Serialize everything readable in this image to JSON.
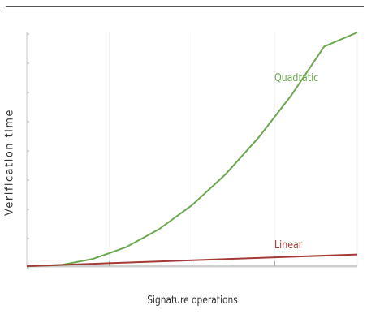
{
  "chart_data": {
    "type": "line",
    "title": "",
    "xlabel": "Signature operations",
    "ylabel": "Verification time",
    "xlim": [
      0,
      10
    ],
    "ylim": [
      0,
      10
    ],
    "grid": true,
    "series": [
      {
        "name": "Quadratic",
        "color": "#6aa84f",
        "x": [
          0,
          1,
          2,
          3,
          4,
          5,
          6,
          7,
          8,
          9,
          10
        ],
        "y": [
          0,
          0.04,
          0.31,
          0.81,
          1.58,
          2.61,
          3.91,
          5.48,
          7.3,
          9.4,
          10
        ]
      },
      {
        "name": "Linear",
        "color": "#a33a35",
        "x": [
          0,
          10
        ],
        "y": [
          0,
          0.5
        ]
      }
    ]
  }
}
